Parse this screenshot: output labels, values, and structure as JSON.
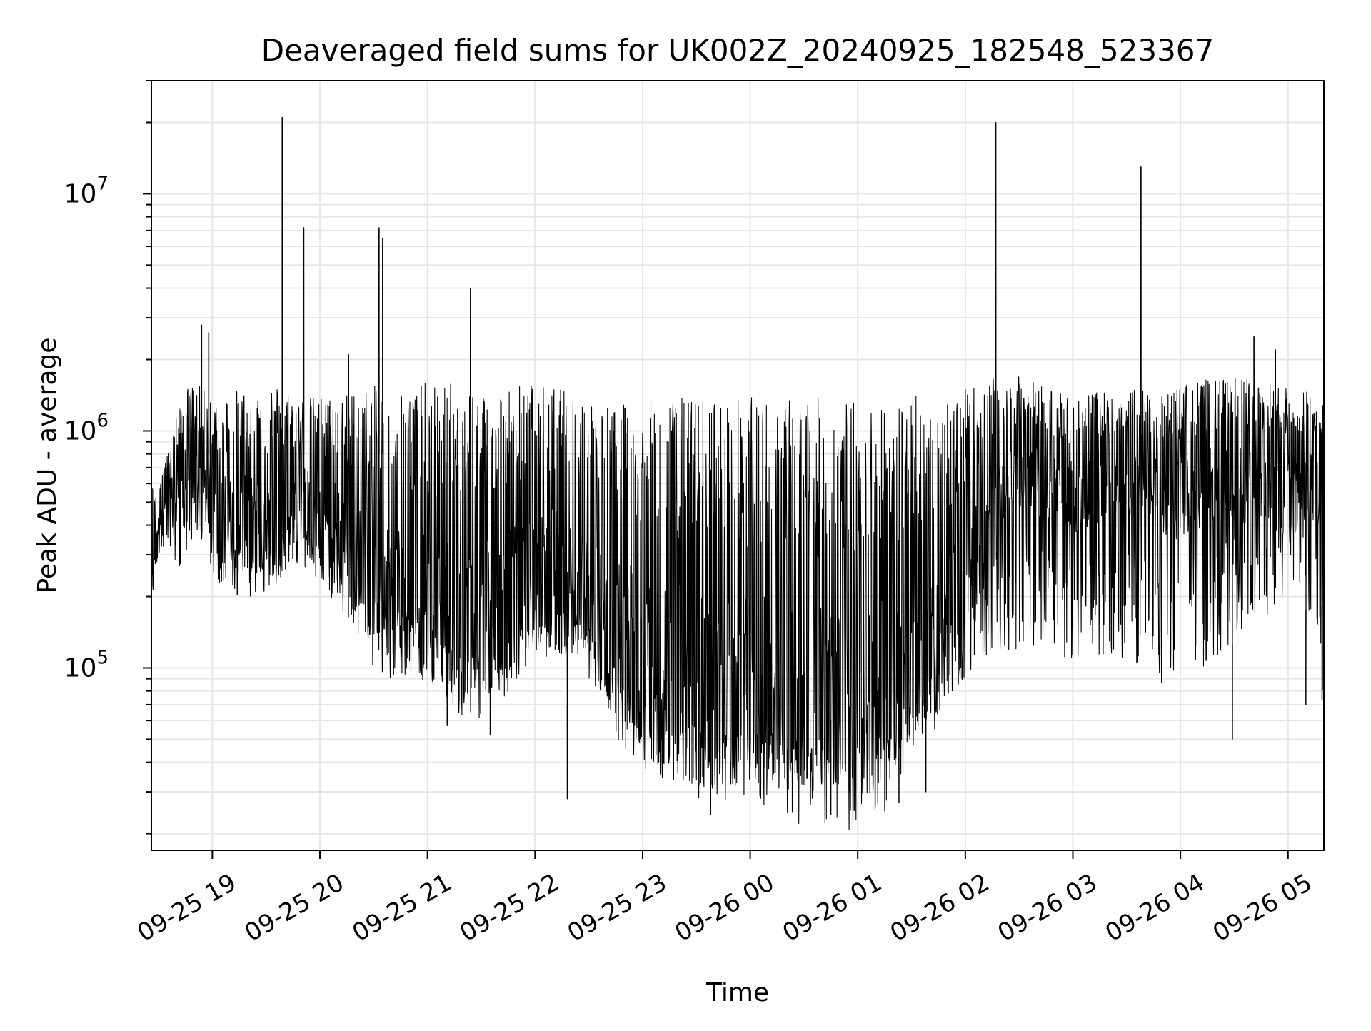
{
  "chart_data": {
    "type": "line",
    "title": "Deaveraged field sums for UK002Z_20240925_182548_523367",
    "xlabel": "Time",
    "ylabel": "Peak ADU - average",
    "y_scale": "log",
    "ylim": [
      17000,
      30000000
    ],
    "xlim": [
      "2024-09-25 18:26",
      "2024-09-26 05:20"
    ],
    "x_ticks": [
      {
        "t": "2024-09-25 19:00",
        "label": "09-25 19"
      },
      {
        "t": "2024-09-25 20:00",
        "label": "09-25 20"
      },
      {
        "t": "2024-09-25 21:00",
        "label": "09-25 21"
      },
      {
        "t": "2024-09-25 22:00",
        "label": "09-25 22"
      },
      {
        "t": "2024-09-25 23:00",
        "label": "09-25 23"
      },
      {
        "t": "2024-09-26 00:00",
        "label": "09-26 00"
      },
      {
        "t": "2024-09-26 01:00",
        "label": "09-26 01"
      },
      {
        "t": "2024-09-26 02:00",
        "label": "09-26 02"
      },
      {
        "t": "2024-09-26 03:00",
        "label": "09-26 03"
      },
      {
        "t": "2024-09-26 04:00",
        "label": "09-26 04"
      },
      {
        "t": "2024-09-26 05:00",
        "label": "09-26 05"
      }
    ],
    "y_ticks": [
      {
        "value": 100000,
        "base": "10",
        "exp": "5"
      },
      {
        "value": 1000000,
        "base": "10",
        "exp": "6"
      },
      {
        "value": 10000000,
        "base": "10",
        "exp": "7"
      }
    ],
    "grid": true,
    "line_color": "#000000",
    "grid_color": "#e6e6e6",
    "series": [
      {
        "x": [
          "2024-09-25 18:26",
          "2024-09-25 18:30",
          "2024-09-25 18:35",
          "2024-09-25 18:40",
          "2024-09-25 18:45",
          "2024-09-25 18:50",
          "2024-09-25 18:55",
          "2024-09-25 19:00",
          "2024-09-25 19:05",
          "2024-09-25 19:10",
          "2024-09-25 19:15",
          "2024-09-25 19:20",
          "2024-09-25 19:25",
          "2024-09-25 19:30",
          "2024-09-25 19:35",
          "2024-09-25 19:40",
          "2024-09-25 19:45",
          "2024-09-25 19:50",
          "2024-09-25 19:55",
          "2024-09-25 20:00",
          "2024-09-25 20:05",
          "2024-09-25 20:10",
          "2024-09-25 20:15",
          "2024-09-25 20:20",
          "2024-09-25 20:25",
          "2024-09-25 20:30",
          "2024-09-25 20:35",
          "2024-09-25 20:40",
          "2024-09-25 20:45",
          "2024-09-25 20:50",
          "2024-09-25 20:55",
          "2024-09-25 21:00",
          "2024-09-25 21:05",
          "2024-09-25 21:10",
          "2024-09-25 21:15",
          "2024-09-25 21:20",
          "2024-09-25 21:25",
          "2024-09-25 21:30",
          "2024-09-25 21:35",
          "2024-09-25 21:40",
          "2024-09-25 21:45",
          "2024-09-25 21:50",
          "2024-09-25 21:55",
          "2024-09-25 22:00",
          "2024-09-25 22:05",
          "2024-09-25 22:10",
          "2024-09-25 22:15",
          "2024-09-25 22:20",
          "2024-09-25 22:25",
          "2024-09-25 22:30",
          "2024-09-25 22:35",
          "2024-09-25 22:40",
          "2024-09-25 22:45",
          "2024-09-25 22:50",
          "2024-09-25 22:55",
          "2024-09-25 23:00",
          "2024-09-25 23:05",
          "2024-09-25 23:10",
          "2024-09-25 23:15",
          "2024-09-25 23:20",
          "2024-09-25 23:25",
          "2024-09-25 23:30",
          "2024-09-25 23:35",
          "2024-09-25 23:40",
          "2024-09-25 23:45",
          "2024-09-25 23:50",
          "2024-09-25 23:55",
          "2024-09-26 00:00",
          "2024-09-26 00:05",
          "2024-09-26 00:10",
          "2024-09-26 00:15",
          "2024-09-26 00:20",
          "2024-09-26 00:25",
          "2024-09-26 00:30",
          "2024-09-26 00:35",
          "2024-09-26 00:40",
          "2024-09-26 00:45",
          "2024-09-26 00:50",
          "2024-09-26 00:55",
          "2024-09-26 01:00",
          "2024-09-26 01:05",
          "2024-09-26 01:10",
          "2024-09-26 01:15",
          "2024-09-26 01:20",
          "2024-09-26 01:25",
          "2024-09-26 01:30",
          "2024-09-26 01:35",
          "2024-09-26 01:40",
          "2024-09-26 01:45",
          "2024-09-26 01:50",
          "2024-09-26 01:55",
          "2024-09-26 02:00",
          "2024-09-26 02:05",
          "2024-09-26 02:10",
          "2024-09-26 02:15",
          "2024-09-26 02:20",
          "2024-09-26 02:25",
          "2024-09-26 02:30",
          "2024-09-26 02:35",
          "2024-09-26 02:40",
          "2024-09-26 02:45",
          "2024-09-26 02:50",
          "2024-09-26 02:55",
          "2024-09-26 03:00",
          "2024-09-26 03:05",
          "2024-09-26 03:10",
          "2024-09-26 03:15",
          "2024-09-26 03:20",
          "2024-09-26 03:25",
          "2024-09-26 03:30",
          "2024-09-26 03:35",
          "2024-09-26 03:40",
          "2024-09-26 03:45",
          "2024-09-26 03:50",
          "2024-09-26 03:55",
          "2024-09-26 04:00",
          "2024-09-26 04:05",
          "2024-09-26 04:10",
          "2024-09-26 04:15",
          "2024-09-26 04:20",
          "2024-09-26 04:25",
          "2024-09-26 04:30",
          "2024-09-26 04:35",
          "2024-09-26 04:40",
          "2024-09-26 04:45",
          "2024-09-26 04:50",
          "2024-09-26 04:55",
          "2024-09-26 05:00",
          "2024-09-26 05:05",
          "2024-09-26 05:10",
          "2024-09-26 05:15",
          "2024-09-26 05:20"
        ],
        "base": [
          200000,
          450000,
          500000,
          550000,
          650000,
          600000,
          550000,
          500000,
          450000,
          420000,
          400000,
          420000,
          400000,
          380000,
          420000,
          450000,
          480000,
          500000,
          480000,
          450000,
          430000,
          400000,
          350000,
          300000,
          260000,
          240000,
          230000,
          220000,
          210000,
          200000,
          190000,
          180000,
          175000,
          170000,
          165000,
          160000,
          160000,
          165000,
          170000,
          180000,
          200000,
          210000,
          220000,
          230000,
          240000,
          250000,
          260000,
          250000,
          230000,
          200000,
          170000,
          150000,
          140000,
          130000,
          120000,
          110000,
          100000,
          95000,
          90000,
          85000,
          80000,
          78000,
          75000,
          73000,
          72000,
          70000,
          72000,
          75000,
          72000,
          70000,
          68000,
          66000,
          65000,
          64000,
          63000,
          62000,
          62000,
          61000,
          60000,
          62000,
          64000,
          66000,
          70000,
          78000,
          90000,
          100000,
          110000,
          120000,
          135000,
          150000,
          170000,
          190000,
          250000,
          400000,
          550000,
          600000,
          650000,
          650000,
          620000,
          600000,
          580000,
          560000,
          540000,
          520000,
          520000,
          540000,
          560000,
          580000,
          600000,
          600000,
          580000,
          560000,
          540000,
          520000,
          500000,
          520000,
          540000,
          560000,
          580000,
          600000,
          600000,
          600000,
          580000,
          560000,
          560000,
          580000,
          600000,
          620000,
          600000,
          580000,
          560000,
          550000
        ],
        "upper_envelope": [
          600000,
          650000,
          800000,
          1200000,
          1500000,
          1600000,
          1500000,
          1400000,
          1400000,
          1450000,
          1500000,
          1500000,
          1550000,
          1600000,
          1600000,
          1500000,
          1450000,
          1400000,
          1400000,
          1400000,
          1400000,
          1400000,
          1450000,
          1500000,
          1500000,
          1550000,
          1550000,
          1550000,
          1600000,
          1600000,
          1600000,
          1600000,
          1600000,
          1600000,
          1600000,
          1600000,
          1600000,
          1550000,
          1550000,
          1550000,
          1550000,
          1600000,
          1600000,
          1600000,
          1550000,
          1550000,
          1500000,
          1500000,
          1450000,
          1400000,
          1350000,
          1300000,
          1300000,
          1300000,
          1300000,
          1350000,
          1350000,
          1400000,
          1400000,
          1400000,
          1400000,
          1400000,
          1400000,
          1400000,
          1400000,
          1400000,
          1400000,
          1400000,
          1400000,
          1400000,
          1400000,
          1400000,
          1400000,
          1400000,
          1400000,
          1350000,
          1350000,
          1350000,
          1350000,
          1400000,
          1400000,
          1400000,
          1400000,
          1400000,
          1400000,
          1450000,
          1450000,
          1450000,
          1500000,
          1500000,
          1500000,
          1500000,
          1550000,
          1600000,
          1650000,
          1700000,
          1700000,
          1700000,
          1650000,
          1600000,
          1550000,
          1500000,
          1500000,
          1450000,
          1450000,
          1450000,
          1450000,
          1500000,
          1500000,
          1500000,
          1500000,
          1500000,
          1500000,
          1500000,
          1500000,
          1550000,
          1600000,
          1650000,
          1650000,
          1650000,
          1650000,
          1700000,
          1700000,
          1700000,
          1650000,
          1600000,
          1550000,
          1500000,
          1500000,
          1500000,
          1500000,
          1500000
        ],
        "lower_envelope": [
          180000,
          300000,
          340000,
          250000,
          300000,
          350000,
          300000,
          250000,
          220000,
          200000,
          190000,
          200000,
          200000,
          210000,
          220000,
          230000,
          250000,
          260000,
          250000,
          220000,
          200000,
          180000,
          150000,
          120000,
          110000,
          95000,
          90000,
          85000,
          90000,
          90000,
          90000,
          90000,
          80000,
          72000,
          65000,
          60000,
          60000,
          62000,
          65000,
          70000,
          80000,
          90000,
          100000,
          110000,
          110000,
          110000,
          115000,
          110000,
          100000,
          90000,
          75000,
          60000,
          50000,
          45000,
          40000,
          38000,
          35000,
          34000,
          33000,
          32000,
          31000,
          30000,
          29000,
          29000,
          30000,
          32000,
          33000,
          34000,
          33000,
          32000,
          31000,
          30000,
          30000,
          29000,
          29000,
          28000,
          28000,
          28000,
          28000,
          29000,
          30000,
          32000,
          34000,
          37000,
          42000,
          50000,
          55000,
          60000,
          65000,
          70000,
          80000,
          90000,
          100000,
          110000,
          110000,
          115000,
          120000,
          120000,
          120000,
          120000,
          115000,
          115000,
          110000,
          110000,
          110000,
          110000,
          110000,
          110000,
          110000,
          110000,
          100000,
          95000,
          90000,
          85000,
          85000,
          85000,
          90000,
          95000,
          100000,
          110000,
          120000,
          130000,
          140000,
          150000,
          160000,
          170000,
          180000,
          200000,
          220000,
          200000,
          100000,
          75000
        ],
        "spikes": [
          {
            "x": "2024-09-25 18:54",
            "y": 2800000
          },
          {
            "x": "2024-09-25 18:58",
            "y": 2600000
          },
          {
            "x": "2024-09-25 19:39",
            "y": 21000000
          },
          {
            "x": "2024-09-25 19:39",
            "y": 17500000
          },
          {
            "x": "2024-09-25 19:51",
            "y": 7200000
          },
          {
            "x": "2024-09-25 20:16",
            "y": 2100000
          },
          {
            "x": "2024-09-25 20:33",
            "y": 7200000
          },
          {
            "x": "2024-09-25 20:35",
            "y": 6500000
          },
          {
            "x": "2024-09-25 21:24",
            "y": 4000000
          },
          {
            "x": "2024-09-26 02:17",
            "y": 20000000
          },
          {
            "x": "2024-09-26 03:38",
            "y": 13000000
          },
          {
            "x": "2024-09-26 04:41",
            "y": 2500000
          },
          {
            "x": "2024-09-26 04:53",
            "y": 2200000
          }
        ],
        "dips": [
          {
            "x": "2024-09-25 21:11",
            "y": 57000
          },
          {
            "x": "2024-09-25 21:35",
            "y": 52000
          },
          {
            "x": "2024-09-25 22:18",
            "y": 28000
          },
          {
            "x": "2024-09-25 23:38",
            "y": 24000
          },
          {
            "x": "2024-09-26 00:45",
            "y": 24000
          },
          {
            "x": "2024-09-26 00:58",
            "y": 25000
          },
          {
            "x": "2024-09-26 01:23",
            "y": 27000
          },
          {
            "x": "2024-09-26 01:38",
            "y": 30000
          },
          {
            "x": "2024-09-26 04:29",
            "y": 50000
          },
          {
            "x": "2024-09-26 05:10",
            "y": 70000
          },
          {
            "x": "2024-09-26 05:19",
            "y": 73000
          }
        ]
      }
    ]
  }
}
